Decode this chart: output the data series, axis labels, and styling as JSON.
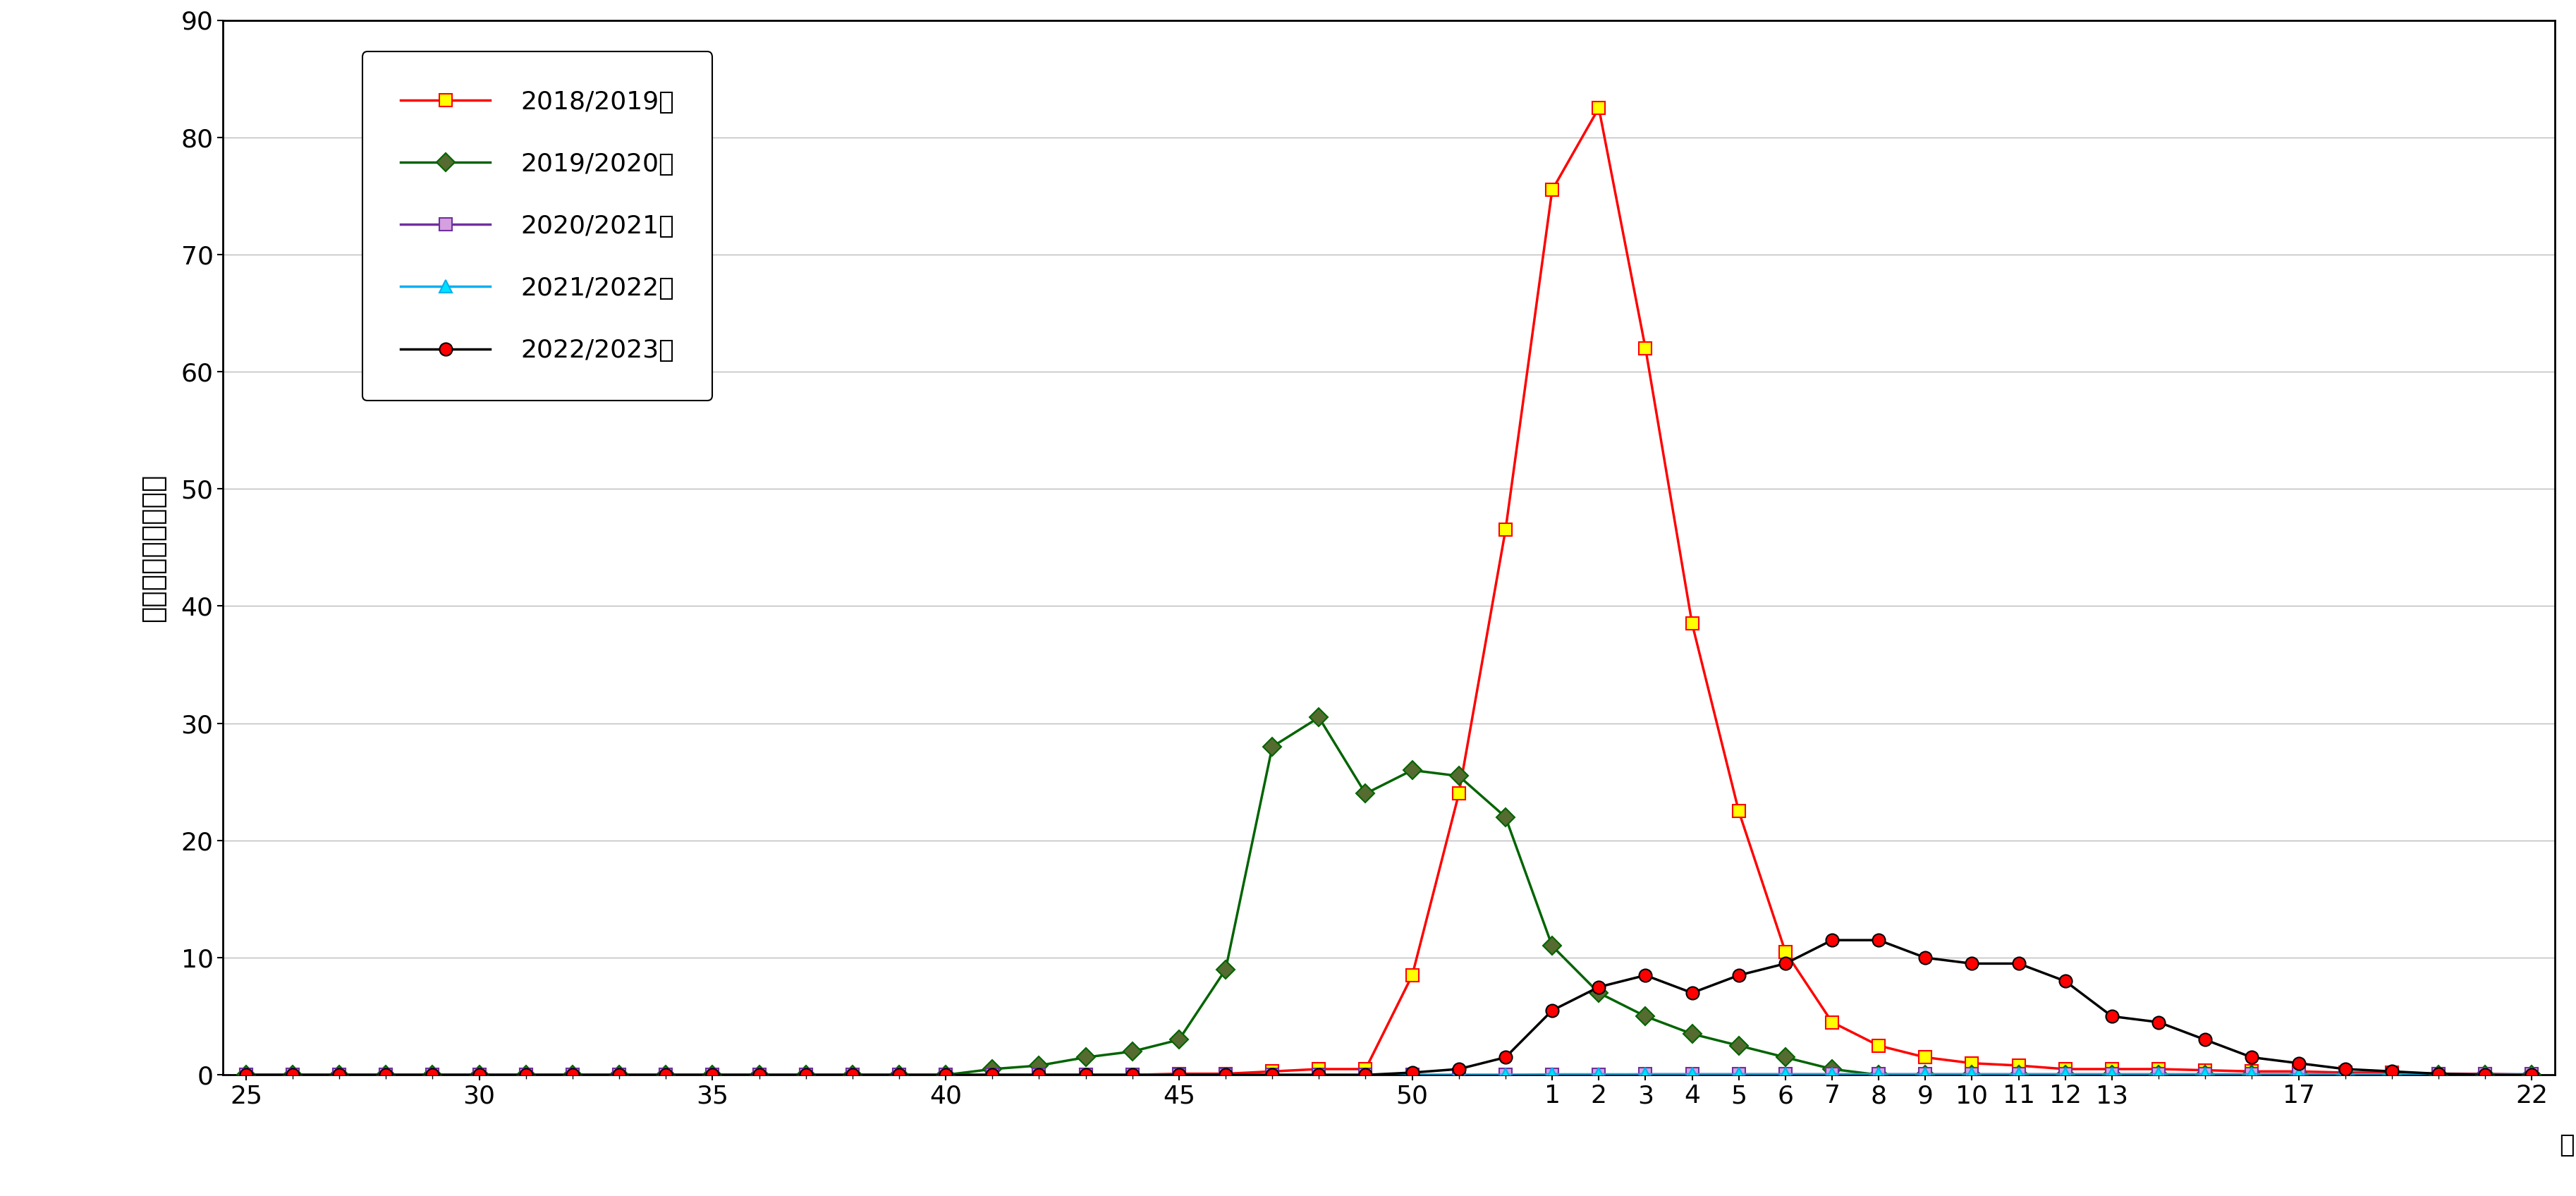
{
  "title": "",
  "ylabel": "定点あたりの報告数",
  "xlabel": "週",
  "ylim": [
    0,
    90
  ],
  "yticks": [
    0,
    10,
    20,
    30,
    40,
    50,
    60,
    70,
    80,
    90
  ],
  "background_color": "#ffffff",
  "series": [
    {
      "label": "2018/2019年",
      "line_color": "#ff0000",
      "marker": "s",
      "marker_facecolor": "#ffff00",
      "marker_edgecolor": "#ff0000",
      "data_indices": [
        0,
        1,
        2,
        3,
        4,
        5,
        6,
        7,
        8,
        9,
        10,
        11,
        12,
        13,
        14,
        15,
        16,
        17,
        18,
        19,
        20,
        21,
        22,
        23,
        24,
        25,
        26,
        27,
        28,
        29,
        30,
        31,
        32,
        33,
        34,
        35,
        36,
        37,
        38,
        39,
        40,
        41,
        42,
        43,
        44,
        45,
        46,
        47,
        48,
        49
      ],
      "data_values": [
        0.0,
        0.0,
        0.0,
        0.0,
        0.0,
        0.0,
        0.0,
        0.0,
        0.0,
        0.0,
        0.0,
        0.0,
        0.0,
        0.0,
        0.0,
        0.0,
        0.0,
        0.0,
        0.0,
        0.0,
        0.1,
        0.1,
        0.3,
        0.5,
        0.5,
        8.5,
        24.0,
        46.5,
        75.5,
        82.5,
        62.0,
        38.5,
        22.5,
        10.5,
        4.5,
        2.5,
        1.5,
        1.0,
        0.8,
        0.5,
        0.5,
        0.5,
        0.4,
        0.3,
        0.3,
        0.2,
        0.2,
        0.1,
        0.1,
        0.0
      ]
    },
    {
      "label": "2019/2020年",
      "line_color": "#006400",
      "marker": "D",
      "marker_facecolor": "#556b2f",
      "marker_edgecolor": "#006400",
      "data_indices": [
        0,
        1,
        2,
        3,
        4,
        5,
        6,
        7,
        8,
        9,
        10,
        11,
        12,
        13,
        14,
        15,
        16,
        17,
        18,
        19,
        20,
        21,
        22,
        23,
        24,
        25,
        26,
        27,
        28,
        29,
        30,
        31,
        32,
        33,
        34,
        35,
        36,
        37,
        38,
        39,
        40,
        41,
        42,
        43,
        44,
        45,
        46,
        47,
        48,
        49
      ],
      "data_values": [
        0.0,
        0.0,
        0.0,
        0.0,
        0.0,
        0.0,
        0.0,
        0.0,
        0.0,
        0.0,
        0.0,
        0.0,
        0.0,
        0.0,
        0.0,
        0.0,
        0.5,
        0.8,
        1.5,
        2.0,
        3.0,
        9.0,
        28.0,
        30.5,
        24.0,
        26.0,
        25.5,
        22.0,
        11.0,
        7.0,
        5.0,
        3.5,
        2.5,
        1.5,
        0.5,
        0.0,
        0.0,
        0.0,
        0.0,
        0.0,
        0.0,
        0.0,
        0.0,
        0.0,
        0.0,
        0.0,
        0.0,
        0.0,
        0.0,
        0.0
      ]
    },
    {
      "label": "2020/2021年",
      "line_color": "#7030a0",
      "marker": "s",
      "marker_facecolor": "#d4a0e0",
      "marker_edgecolor": "#7030a0",
      "data_indices": [
        0,
        1,
        2,
        3,
        4,
        5,
        6,
        7,
        8,
        9,
        10,
        11,
        12,
        13,
        14,
        15,
        16,
        17,
        18,
        19,
        20,
        21,
        22,
        23,
        24,
        25,
        26,
        27,
        28,
        29,
        30,
        31,
        32,
        33,
        34,
        35,
        36,
        37,
        38,
        39,
        40,
        41,
        42,
        43,
        44,
        45,
        46,
        47,
        48,
        49
      ],
      "data_values": [
        0.0,
        0.0,
        0.0,
        0.0,
        0.0,
        0.0,
        0.0,
        0.0,
        0.0,
        0.0,
        0.0,
        0.0,
        0.0,
        0.0,
        0.0,
        0.0,
        0.0,
        0.0,
        0.0,
        0.0,
        0.0,
        0.0,
        0.0,
        0.0,
        0.0,
        0.0,
        0.0,
        0.0,
        0.0,
        0.0,
        0.05,
        0.05,
        0.05,
        0.05,
        0.05,
        0.05,
        0.05,
        0.05,
        0.05,
        0.05,
        0.05,
        0.05,
        0.05,
        0.05,
        0.05,
        0.05,
        0.05,
        0.05,
        0.05,
        0.05
      ]
    },
    {
      "label": "2021/2022年",
      "line_color": "#00b0f0",
      "marker": "^",
      "marker_facecolor": "#00e0ff",
      "marker_edgecolor": "#00b0f0",
      "data_indices": [
        0,
        1,
        2,
        3,
        4,
        5,
        6,
        7,
        8,
        9,
        10,
        11,
        12,
        13,
        14,
        15,
        16,
        17,
        18,
        19,
        20,
        21,
        22,
        23,
        24,
        25,
        26,
        27,
        28,
        29,
        30,
        31,
        32,
        33,
        34,
        35,
        36,
        37,
        38,
        39,
        40,
        41,
        42,
        43,
        44,
        45,
        46,
        47,
        48,
        49
      ],
      "data_values": [
        0.0,
        0.0,
        0.0,
        0.0,
        0.0,
        0.0,
        0.0,
        0.0,
        0.0,
        0.0,
        0.0,
        0.0,
        0.0,
        0.0,
        0.0,
        0.0,
        0.0,
        0.0,
        0.0,
        0.0,
        0.0,
        0.0,
        0.0,
        0.0,
        0.0,
        0.0,
        0.0,
        0.0,
        0.05,
        0.05,
        0.05,
        0.05,
        0.05,
        0.05,
        0.05,
        0.05,
        0.05,
        0.05,
        0.05,
        0.05,
        0.05,
        0.05,
        0.05,
        0.05,
        0.05,
        0.05,
        0.05,
        0.05,
        0.05,
        0.05
      ]
    },
    {
      "label": "2022/2023年",
      "line_color": "#000000",
      "marker": "o",
      "marker_facecolor": "#ff0000",
      "marker_edgecolor": "#000000",
      "data_indices": [
        0,
        1,
        2,
        3,
        4,
        5,
        6,
        7,
        8,
        9,
        10,
        11,
        12,
        13,
        14,
        15,
        16,
        17,
        18,
        19,
        20,
        21,
        22,
        23,
        24,
        25,
        26,
        27,
        28,
        29,
        30,
        31,
        32,
        33,
        34,
        35,
        36,
        37,
        38,
        39,
        40,
        41,
        42,
        43,
        44,
        45,
        46,
        47,
        48,
        49
      ],
      "data_values": [
        0.0,
        0.0,
        0.0,
        0.0,
        0.0,
        0.0,
        0.0,
        0.0,
        0.0,
        0.0,
        0.0,
        0.0,
        0.0,
        0.0,
        0.0,
        0.0,
        0.0,
        0.0,
        0.0,
        0.0,
        0.0,
        0.0,
        0.0,
        0.0,
        0.0,
        0.2,
        0.5,
        1.5,
        5.5,
        7.5,
        8.5,
        7.0,
        8.5,
        9.5,
        11.5,
        11.5,
        10.0,
        9.5,
        9.5,
        8.0,
        5.0,
        4.5,
        3.0,
        1.5,
        1.0,
        0.5,
        0.3,
        0.1,
        0.0,
        0.0
      ]
    }
  ],
  "tick_positions": [
    0,
    5,
    10,
    15,
    20,
    25,
    28,
    29,
    30,
    31,
    32,
    33,
    34,
    35,
    36,
    37,
    38,
    39,
    40,
    44,
    49
  ],
  "tick_labels": [
    "25",
    "30",
    "35",
    "40",
    "45",
    "50",
    "1",
    "2",
    "3",
    "4",
    "5",
    "6",
    "7",
    "8",
    "9",
    "10",
    "11",
    "12",
    "13",
    "17",
    "22"
  ],
  "all_tick_positions": [
    0,
    1,
    2,
    3,
    4,
    5,
    6,
    7,
    8,
    9,
    10,
    11,
    12,
    13,
    14,
    15,
    16,
    17,
    18,
    19,
    20,
    21,
    22,
    23,
    24,
    25,
    26,
    27,
    28,
    29,
    30,
    31,
    32,
    33,
    34,
    35,
    36,
    37,
    38,
    39,
    40,
    41,
    42,
    43,
    44,
    45,
    46,
    47,
    48,
    49
  ]
}
